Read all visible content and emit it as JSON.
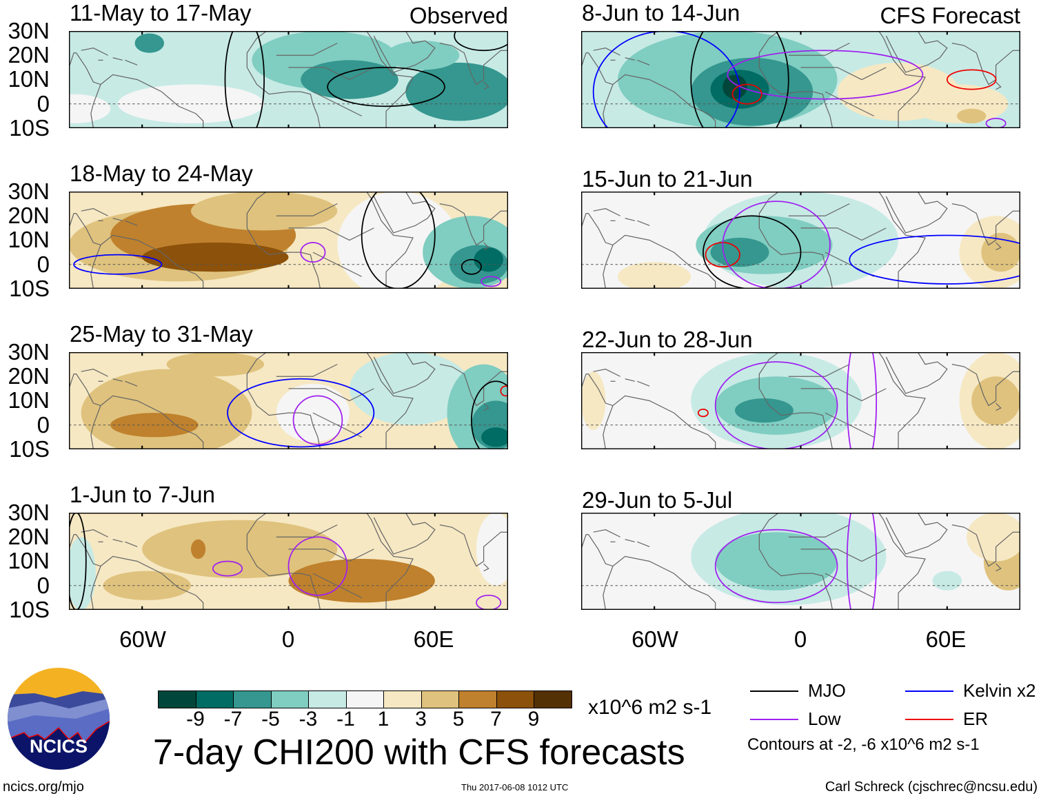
{
  "colors": {
    "levels": [
      -9,
      -7,
      -5,
      -3,
      -1,
      1,
      3,
      5,
      7,
      9
    ],
    "palette": [
      "#01463b",
      "#016c63",
      "#35978f",
      "#80cdc1",
      "#c7eae5",
      "#f5f5f5",
      "#f6e8c3",
      "#dfc27d",
      "#bf812d",
      "#8c510a",
      "#543005"
    ],
    "contours": {
      "MJO": "#000000",
      "Kelvin": "#0000ff",
      "Low": "#a020f0",
      "ER": "#ee0000"
    }
  },
  "lat_labels": [
    "30N",
    "20N",
    "10N",
    "0",
    "10S"
  ],
  "lon_labels": [
    "60W",
    "0",
    "60E"
  ],
  "chart_data": {
    "type": "heatmap",
    "title": "7-day CHI200 with CFS forecasts",
    "units": "x10^6 m2 s-1",
    "lon_range": [
      -90,
      90
    ],
    "lat_range": [
      -10,
      30
    ],
    "colorbar_ticks": [
      "-9",
      "-7",
      "-5",
      "-3",
      "-1",
      "1",
      "3",
      "5",
      "7",
      "9"
    ],
    "panels": [
      {
        "title": "11-May to 17-May",
        "tag": "Observed",
        "base": 4,
        "blobs": [
          {
            "lon": -40,
            "lat": 0,
            "rx": 30,
            "ry": 8,
            "l": 5
          },
          {
            "lon": -88,
            "lat": -2,
            "rx": 15,
            "ry": 6,
            "l": 5
          },
          {
            "lon": -57,
            "lat": 25,
            "rx": 6,
            "ry": 4,
            "l": 2
          },
          {
            "lon": 15,
            "lat": 18,
            "rx": 30,
            "ry": 12,
            "l": 3
          },
          {
            "lon": 25,
            "lat": 10,
            "rx": 20,
            "ry": 8,
            "l": 2
          },
          {
            "lon": 70,
            "lat": 5,
            "rx": 22,
            "ry": 12,
            "l": 2
          },
          {
            "lon": 55,
            "lat": 20,
            "rx": 15,
            "ry": 6,
            "l": 3
          }
        ],
        "contours": [
          {
            "t": "MJO",
            "lon": -18,
            "lat": 10,
            "rx": 8,
            "ry": 25
          },
          {
            "t": "MJO",
            "lon": 40,
            "lat": 7,
            "rx": 24,
            "ry": 8
          },
          {
            "t": "MJO",
            "lon": 80,
            "lat": 28,
            "rx": 12,
            "ry": 6
          }
        ]
      },
      {
        "title": "18-May to 24-May",
        "tag": "",
        "base": 6,
        "blobs": [
          {
            "lon": -45,
            "lat": 8,
            "rx": 45,
            "ry": 15,
            "l": 7
          },
          {
            "lon": -35,
            "lat": 12,
            "rx": 38,
            "ry": 13,
            "l": 8
          },
          {
            "lon": -30,
            "lat": 3,
            "rx": 30,
            "ry": 6,
            "l": 9
          },
          {
            "lon": -10,
            "lat": 22,
            "rx": 30,
            "ry": 8,
            "l": 7
          },
          {
            "lon": 45,
            "lat": 8,
            "rx": 25,
            "ry": 22,
            "l": 5
          },
          {
            "lon": 75,
            "lat": 5,
            "rx": 20,
            "ry": 15,
            "l": 3
          },
          {
            "lon": 78,
            "lat": 0,
            "rx": 12,
            "ry": 8,
            "l": 2
          },
          {
            "lon": 82,
            "lat": 2,
            "rx": 6,
            "ry": 5,
            "l": 1
          }
        ],
        "contours": [
          {
            "t": "Kelvin",
            "lon": -70,
            "lat": 0,
            "rx": 18,
            "ry": 4
          },
          {
            "t": "Low",
            "lon": 10,
            "lat": 5,
            "rx": 5,
            "ry": 4
          },
          {
            "t": "MJO",
            "lon": 45,
            "lat": 12,
            "rx": 15,
            "ry": 22
          },
          {
            "t": "MJO",
            "lon": 75,
            "lat": -1,
            "rx": 4,
            "ry": 3
          },
          {
            "t": "Low",
            "lon": 83,
            "lat": -7,
            "rx": 4,
            "ry": 2
          }
        ]
      },
      {
        "title": "25-May to 31-May",
        "tag": "",
        "base": 6,
        "blobs": [
          {
            "lon": -50,
            "lat": 5,
            "rx": 35,
            "ry": 18,
            "l": 7
          },
          {
            "lon": -55,
            "lat": 0,
            "rx": 18,
            "ry": 5,
            "l": 8
          },
          {
            "lon": -30,
            "lat": 25,
            "rx": 20,
            "ry": 5,
            "l": 7
          },
          {
            "lon": 10,
            "lat": 5,
            "rx": 15,
            "ry": 12,
            "l": 5
          },
          {
            "lon": 50,
            "lat": 15,
            "rx": 25,
            "ry": 15,
            "l": 4
          },
          {
            "lon": 80,
            "lat": 5,
            "rx": 15,
            "ry": 20,
            "l": 3
          },
          {
            "lon": 85,
            "lat": 0,
            "rx": 10,
            "ry": 10,
            "l": 2
          },
          {
            "lon": 85,
            "lat": -5,
            "rx": 6,
            "ry": 4,
            "l": 1
          }
        ],
        "contours": [
          {
            "t": "Kelvin",
            "lon": 5,
            "lat": 5,
            "rx": 30,
            "ry": 14
          },
          {
            "t": "Low",
            "lon": 12,
            "lat": 2,
            "rx": 10,
            "ry": 10
          },
          {
            "t": "MJO",
            "lon": 85,
            "lat": 2,
            "rx": 10,
            "ry": 16
          },
          {
            "t": "ER",
            "lon": 89,
            "lat": 14,
            "rx": 2,
            "ry": 2
          }
        ]
      },
      {
        "title": "1-Jun to 7-Jun",
        "tag": "",
        "base": 6,
        "blobs": [
          {
            "lon": -20,
            "lat": 15,
            "rx": 40,
            "ry": 12,
            "l": 7
          },
          {
            "lon": -58,
            "lat": 0,
            "rx": 18,
            "ry": 6,
            "l": 7
          },
          {
            "lon": -37,
            "lat": 15,
            "rx": 3,
            "ry": 4,
            "l": 8
          },
          {
            "lon": 30,
            "lat": 2,
            "rx": 30,
            "ry": 9,
            "l": 8
          },
          {
            "lon": 40,
            "lat": 0,
            "rx": 15,
            "ry": 5,
            "l": 8
          },
          {
            "lon": -85,
            "lat": 5,
            "rx": 6,
            "ry": 15,
            "l": 4
          },
          {
            "lon": 85,
            "lat": 15,
            "rx": 8,
            "ry": 15,
            "l": 5
          }
        ],
        "contours": [
          {
            "t": "Low",
            "lon": -25,
            "lat": 7,
            "rx": 6,
            "ry": 3
          },
          {
            "t": "Low",
            "lon": 12,
            "lat": 8,
            "rx": 12,
            "ry": 12
          },
          {
            "t": "Low",
            "lon": 82,
            "lat": -7,
            "rx": 5,
            "ry": 3
          },
          {
            "t": "MJO",
            "lon": -87,
            "lat": 10,
            "rx": 4,
            "ry": 20
          }
        ]
      },
      {
        "title": "8-Jun to 14-Jun",
        "tag": "CFS Forecast",
        "base": 4,
        "blobs": [
          {
            "lon": -30,
            "lat": 10,
            "rx": 45,
            "ry": 20,
            "l": 3
          },
          {
            "lon": -20,
            "lat": 5,
            "rx": 25,
            "ry": 14,
            "l": 2
          },
          {
            "lon": -25,
            "lat": 6,
            "rx": 12,
            "ry": 8,
            "l": 1
          },
          {
            "lon": -27,
            "lat": 7,
            "rx": 5,
            "ry": 5,
            "l": 0
          },
          {
            "lon": 40,
            "lat": 5,
            "rx": 25,
            "ry": 12,
            "l": 6
          },
          {
            "lon": 65,
            "lat": 0,
            "rx": 20,
            "ry": 8,
            "l": 6
          },
          {
            "lon": 70,
            "lat": -5,
            "rx": 6,
            "ry": 3,
            "l": 7
          }
        ],
        "contours": [
          {
            "t": "Kelvin",
            "lon": -55,
            "lat": 5,
            "rx": 30,
            "ry": 25
          },
          {
            "t": "MJO",
            "lon": -25,
            "lat": 10,
            "rx": 20,
            "ry": 30
          },
          {
            "t": "Low",
            "lon": 10,
            "lat": 12,
            "rx": 40,
            "ry": 10
          },
          {
            "t": "ER",
            "lon": -22,
            "lat": 4,
            "rx": 6,
            "ry": 4
          },
          {
            "t": "ER",
            "lon": 70,
            "lat": 10,
            "rx": 10,
            "ry": 4
          },
          {
            "t": "Low",
            "lon": 80,
            "lat": -8,
            "rx": 4,
            "ry": 2
          }
        ]
      },
      {
        "title": "15-Jun to 21-Jun",
        "tag": "",
        "base": 5,
        "blobs": [
          {
            "lon": 0,
            "lat": 10,
            "rx": 40,
            "ry": 20,
            "l": 4
          },
          {
            "lon": -15,
            "lat": 8,
            "rx": 28,
            "ry": 12,
            "l": 3
          },
          {
            "lon": -25,
            "lat": 5,
            "rx": 12,
            "ry": 6,
            "l": 2
          },
          {
            "lon": 80,
            "lat": 5,
            "rx": 15,
            "ry": 15,
            "l": 6
          },
          {
            "lon": 82,
            "lat": 5,
            "rx": 8,
            "ry": 8,
            "l": 7
          },
          {
            "lon": -60,
            "lat": -5,
            "rx": 15,
            "ry": 6,
            "l": 6
          }
        ],
        "contours": [
          {
            "t": "MJO",
            "lon": -20,
            "lat": 5,
            "rx": 20,
            "ry": 15
          },
          {
            "t": "ER",
            "lon": -32,
            "lat": 4,
            "rx": 7,
            "ry": 5
          },
          {
            "t": "Low",
            "lon": -10,
            "lat": 8,
            "rx": 22,
            "ry": 18
          },
          {
            "t": "Kelvin",
            "lon": 60,
            "lat": 2,
            "rx": 40,
            "ry": 10
          }
        ]
      },
      {
        "title": "22-Jun to 28-Jun",
        "tag": "",
        "base": 5,
        "blobs": [
          {
            "lon": -10,
            "lat": 10,
            "rx": 35,
            "ry": 20,
            "l": 4
          },
          {
            "lon": -10,
            "lat": 8,
            "rx": 25,
            "ry": 12,
            "l": 3
          },
          {
            "lon": -15,
            "lat": 6,
            "rx": 12,
            "ry": 5,
            "l": 2
          },
          {
            "lon": 80,
            "lat": 10,
            "rx": 15,
            "ry": 20,
            "l": 6
          },
          {
            "lon": 80,
            "lat": 10,
            "rx": 10,
            "ry": 10,
            "l": 7
          },
          {
            "lon": -85,
            "lat": 10,
            "rx": 5,
            "ry": 12,
            "l": 6
          }
        ],
        "contours": [
          {
            "t": "Low",
            "lon": -10,
            "lat": 8,
            "rx": 25,
            "ry": 18
          },
          {
            "t": "ER",
            "lon": -40,
            "lat": 5,
            "rx": 2,
            "ry": 1.5
          },
          {
            "t": "Low",
            "lon": 25,
            "lat": 10,
            "rx": 6,
            "ry": 30
          }
        ]
      },
      {
        "title": "29-Jun to 5-Jul",
        "tag": "",
        "base": 5,
        "blobs": [
          {
            "lon": -5,
            "lat": 12,
            "rx": 40,
            "ry": 20,
            "l": 4
          },
          {
            "lon": -10,
            "lat": 10,
            "rx": 25,
            "ry": 12,
            "l": 3
          },
          {
            "lon": 60,
            "lat": 2,
            "rx": 6,
            "ry": 4,
            "l": 4
          },
          {
            "lon": 85,
            "lat": 10,
            "rx": 10,
            "ry": 12,
            "l": 7
          },
          {
            "lon": 80,
            "lat": 20,
            "rx": 12,
            "ry": 10,
            "l": 6
          }
        ],
        "contours": [
          {
            "t": "Low",
            "lon": -10,
            "lat": 8,
            "rx": 25,
            "ry": 15
          },
          {
            "t": "Low",
            "lon": 25,
            "lat": 10,
            "rx": 6,
            "ry": 30
          }
        ]
      }
    ]
  },
  "footer": {
    "site": "ncics.org/mjo",
    "logo_text": "NCICS",
    "timestamp": "Thu 2017-06-08 1012 UTC",
    "credit": "Carl Schreck (cjschrec@ncsu.edu)"
  },
  "legend": {
    "mjo": "MJO",
    "kelvin": "Kelvin x2",
    "low": "Low",
    "er": "ER",
    "note": "Contours at -2, -6 x10^6 m2 s-1"
  }
}
